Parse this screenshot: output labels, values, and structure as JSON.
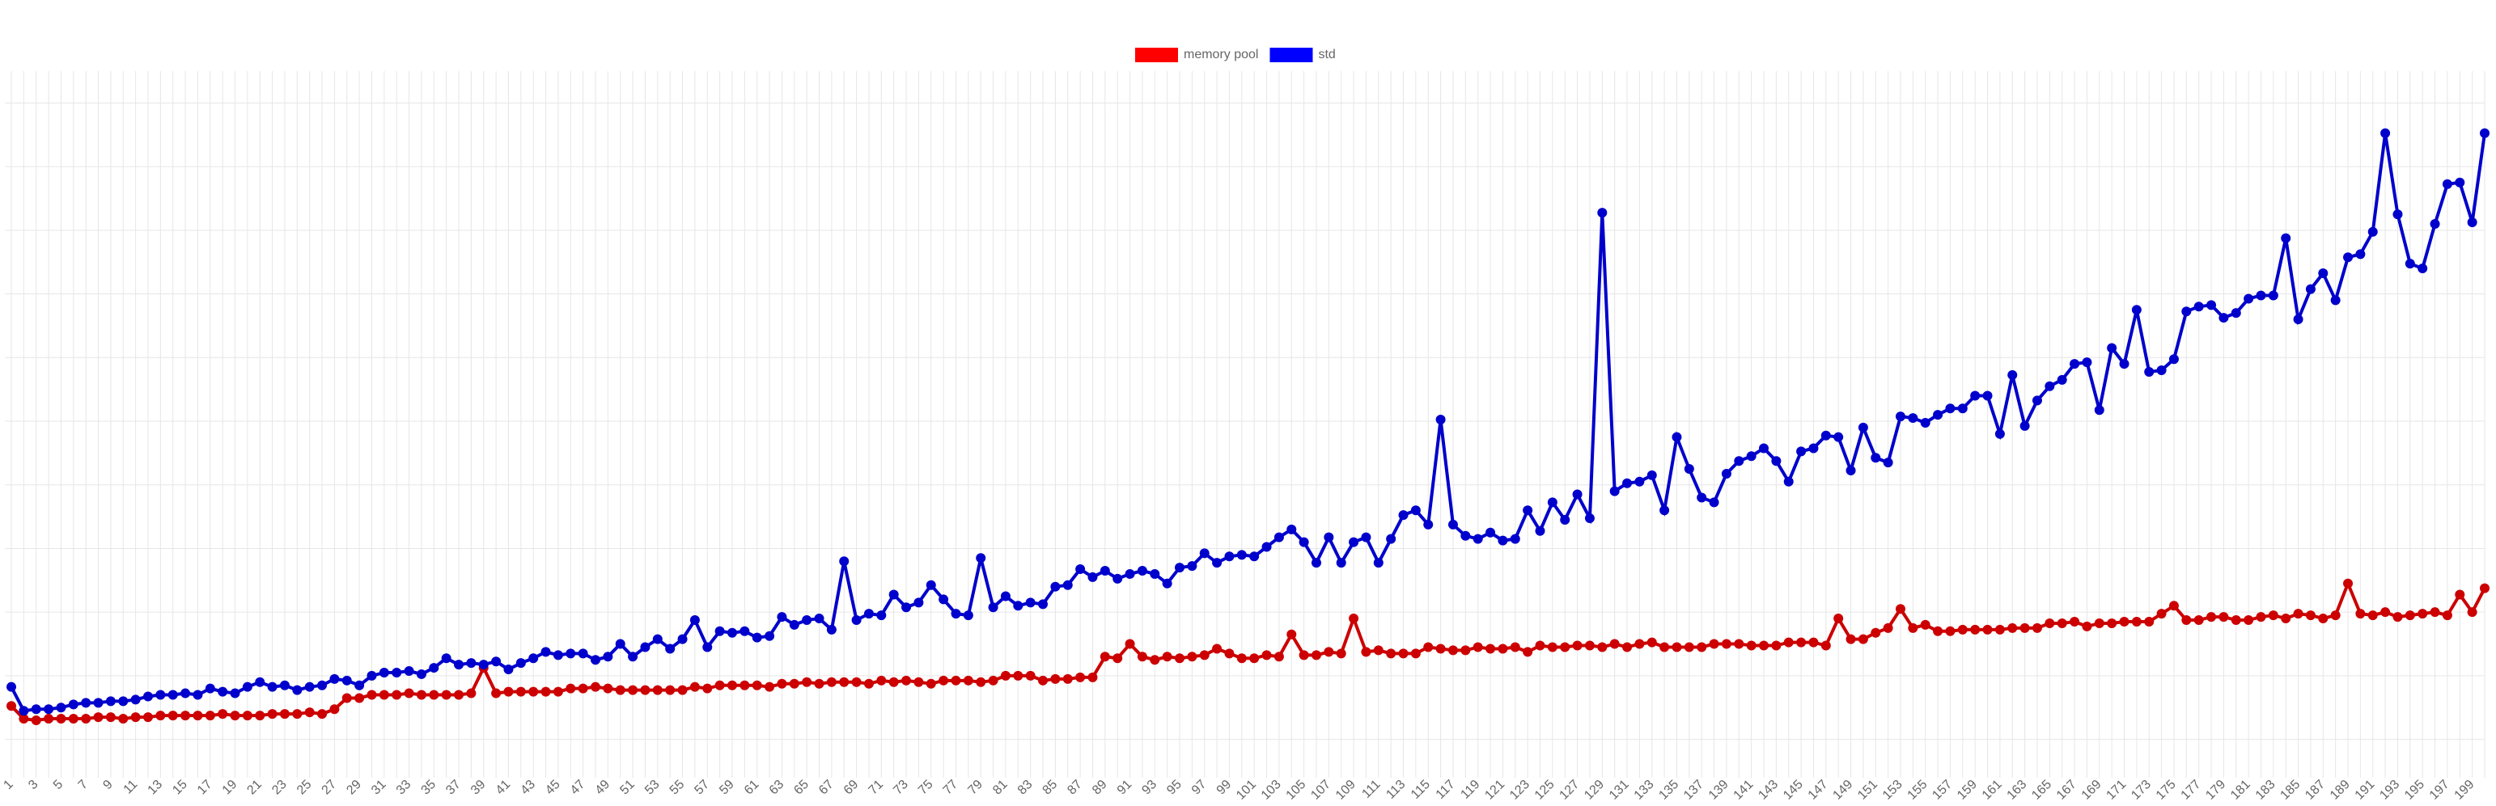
{
  "chart_data": {
    "type": "line",
    "categories": [
      1,
      null,
      3,
      null,
      5,
      null,
      7,
      null,
      9,
      null,
      11,
      null,
      13,
      null,
      15,
      null,
      17,
      null,
      19,
      null,
      21,
      null,
      23,
      null,
      25,
      null,
      27,
      null,
      29,
      null,
      31,
      null,
      33,
      null,
      35,
      null,
      37,
      null,
      39,
      null,
      41,
      null,
      43,
      null,
      45,
      null,
      47,
      null,
      49,
      null,
      51,
      null,
      53,
      null,
      55,
      null,
      57,
      null,
      59,
      null,
      61,
      null,
      63,
      null,
      65,
      null,
      67,
      null,
      69,
      null,
      71,
      null,
      73,
      null,
      75,
      null,
      77,
      null,
      79,
      null,
      81,
      null,
      83,
      null,
      85,
      null,
      87,
      null,
      89,
      null,
      91,
      null,
      93,
      null,
      95,
      null,
      97,
      null,
      99,
      null,
      101,
      null,
      103,
      null,
      105,
      null,
      107,
      null,
      109,
      null,
      111,
      null,
      113,
      null,
      115,
      null,
      117,
      null,
      119,
      null,
      121,
      null,
      123,
      null,
      125,
      null,
      127,
      null,
      129,
      null,
      131,
      null,
      133,
      null,
      135,
      null,
      137,
      null,
      139,
      null,
      141,
      null,
      143,
      null,
      145,
      null,
      147,
      null,
      149,
      null,
      151,
      null,
      153,
      null,
      155,
      null,
      157,
      null,
      159,
      null,
      161,
      null,
      163,
      null,
      165,
      null,
      167,
      null,
      169,
      null,
      171,
      null,
      173,
      null,
      175,
      null,
      177,
      null,
      179,
      null,
      181,
      null,
      183,
      null,
      185,
      null,
      187,
      null,
      189,
      null,
      191,
      null,
      193,
      null,
      195,
      null,
      197,
      null,
      199,
      null
    ],
    "series": [
      {
        "name": "memory pool",
        "color": "#ff0000",
        "line_color": "#cc0000",
        "values": [
          41,
          33,
          32,
          33,
          33,
          33,
          33,
          34,
          34,
          33,
          34,
          34,
          35,
          35,
          35,
          35,
          35,
          36,
          35,
          35,
          35,
          36,
          36,
          36,
          37,
          36,
          39,
          46,
          46,
          48,
          48,
          48,
          49,
          48,
          48,
          48,
          48,
          49,
          65,
          49,
          50,
          50,
          50,
          50,
          50,
          52,
          52,
          53,
          52,
          51,
          51,
          51,
          51,
          51,
          51,
          53,
          52,
          54,
          54,
          54,
          54,
          53,
          55,
          55,
          56,
          55,
          56,
          56,
          56,
          55,
          57,
          56,
          57,
          56,
          55,
          57,
          57,
          57,
          56,
          57,
          60,
          60,
          60,
          57,
          58,
          58,
          59,
          59,
          72,
          71,
          80,
          72,
          70,
          72,
          71,
          72,
          73,
          77,
          74,
          71,
          71,
          73,
          72,
          86,
          73,
          73,
          75,
          74,
          96,
          75,
          76,
          74,
          74,
          74,
          78,
          77,
          76,
          76,
          78,
          77,
          77,
          78,
          75,
          79,
          78,
          78,
          79,
          79,
          78,
          80,
          78,
          80,
          81,
          78,
          78,
          78,
          78,
          80,
          80,
          80,
          79,
          79,
          79,
          81,
          81,
          81,
          79,
          96,
          83,
          83,
          87,
          90,
          102,
          90,
          92,
          88,
          88,
          89,
          89,
          89,
          89,
          90,
          90,
          90,
          93,
          93,
          94,
          91,
          93,
          93,
          94,
          94,
          94,
          99,
          104,
          95,
          95,
          97,
          97,
          95,
          95,
          97,
          98,
          96,
          99,
          98,
          96,
          98,
          118,
          99,
          98,
          100,
          97,
          98,
          99,
          100,
          98,
          111,
          100,
          115
        ]
      },
      {
        "name": "std",
        "color": "#0000ff",
        "line_color": "#0000cc",
        "values": [
          53,
          38,
          39,
          39,
          40,
          42,
          43,
          43,
          44,
          44,
          45,
          47,
          48,
          48,
          49,
          48,
          52,
          50,
          49,
          53,
          56,
          53,
          54,
          51,
          53,
          54,
          58,
          57,
          54,
          60,
          62,
          62,
          63,
          61,
          65,
          71,
          67,
          68,
          67,
          69,
          64,
          68,
          71,
          75,
          73,
          74,
          74,
          70,
          72,
          80,
          72,
          78,
          83,
          77,
          83,
          95,
          78,
          88,
          87,
          88,
          84,
          85,
          97,
          92,
          95,
          96,
          89,
          132,
          95,
          99,
          98,
          111,
          103,
          106,
          117,
          108,
          99,
          98,
          134,
          103,
          110,
          104,
          106,
          105,
          116,
          117,
          127,
          122,
          126,
          121,
          124,
          126,
          124,
          118,
          128,
          129,
          137,
          131,
          135,
          136,
          135,
          141,
          147,
          152,
          144,
          131,
          147,
          131,
          144,
          147,
          131,
          146,
          161,
          164,
          155,
          221,
          155,
          148,
          146,
          150,
          145,
          146,
          164,
          151,
          169,
          158,
          174,
          159,
          351,
          176,
          181,
          182,
          186,
          164,
          210,
          190,
          172,
          169,
          187,
          195,
          198,
          203,
          195,
          182,
          201,
          203,
          211,
          210,
          189,
          216,
          197,
          194,
          223,
          222,
          219,
          224,
          228,
          228,
          236,
          236,
          212,
          249,
          217,
          233,
          242,
          246,
          256,
          257,
          227,
          266,
          256,
          290,
          251,
          252,
          259,
          289,
          292,
          293,
          285,
          288,
          297,
          299,
          299,
          335,
          284,
          303,
          313,
          296,
          323,
          325,
          339,
          401,
          350,
          319,
          316,
          344,
          369,
          370,
          345,
          401
        ]
      }
    ],
    "ylim": [
      0,
      440
    ],
    "yticks": [
      20,
      60,
      100,
      140,
      180,
      220,
      260,
      300,
      340,
      380,
      420
    ],
    "grid": true,
    "legend": "top"
  }
}
